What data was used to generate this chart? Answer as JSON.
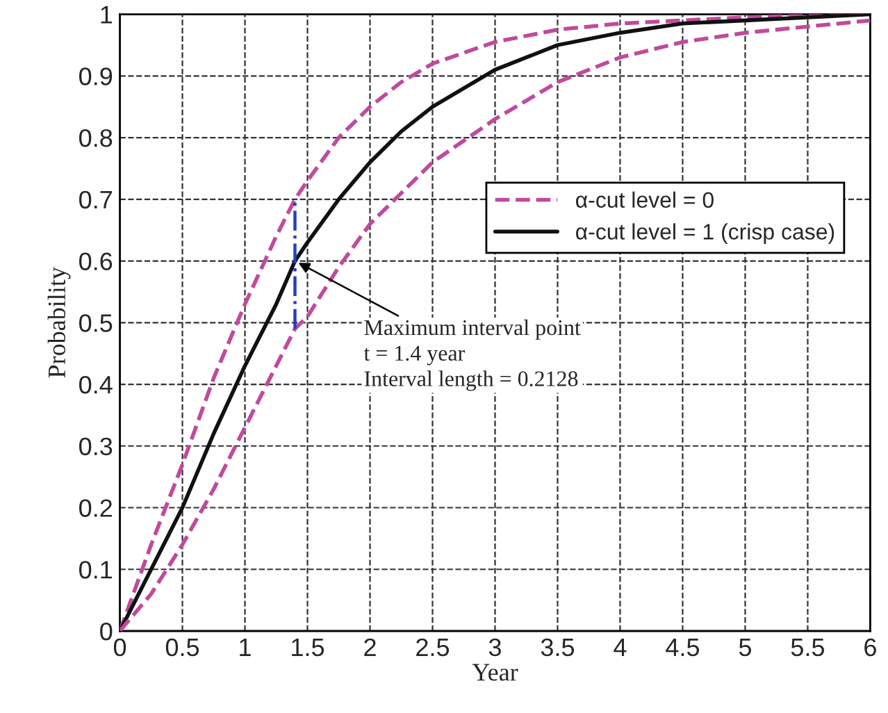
{
  "chart_data": {
    "type": "line",
    "xlabel": "Year",
    "ylabel": "Probability",
    "xlim": [
      0,
      6
    ],
    "xticks": [
      0,
      0.5,
      1,
      1.5,
      2,
      2.5,
      3,
      3.5,
      4,
      4.5,
      5,
      5.5,
      6
    ],
    "ylim": [
      0,
      1
    ],
    "yticks": [
      0,
      0.1,
      0.2,
      0.3,
      0.4,
      0.5,
      0.6,
      0.7,
      0.8,
      0.9,
      1
    ],
    "grid": true,
    "legend": "right",
    "marker": "none",
    "series": [
      {
        "name": "α-cut level = 0",
        "color": "#c04a9c",
        "line_style": "dashed",
        "x": [
          0,
          0.25,
          0.5,
          0.75,
          1,
          1.25,
          1.4,
          1.5,
          1.75,
          2,
          2.25,
          2.5,
          3,
          3.5,
          4,
          4.5,
          5,
          5.5,
          6
        ],
        "values": [
          0,
          0.14,
          0.27,
          0.41,
          0.53,
          0.64,
          0.7,
          0.73,
          0.8,
          0.85,
          0.89,
          0.92,
          0.955,
          0.975,
          0.985,
          0.99,
          0.995,
          0.998,
          1
        ]
      },
      {
        "name": "α-cut level = 1 (crisp case)",
        "color": "#111111",
        "line_style": "solid",
        "x": [
          0,
          0.25,
          0.5,
          0.75,
          1,
          1.25,
          1.4,
          1.5,
          1.75,
          2,
          2.25,
          2.5,
          3,
          3.5,
          4,
          4.5,
          5,
          5.5,
          6
        ],
        "values": [
          0,
          0.1,
          0.2,
          0.32,
          0.43,
          0.53,
          0.6,
          0.63,
          0.7,
          0.76,
          0.81,
          0.85,
          0.91,
          0.95,
          0.97,
          0.985,
          0.99,
          0.995,
          1
        ]
      },
      {
        "color": "#c04a9c",
        "line_style": "dashed",
        "x": [
          0,
          0.25,
          0.5,
          0.75,
          1,
          1.25,
          1.4,
          1.5,
          1.75,
          2,
          2.25,
          2.5,
          3,
          3.5,
          4,
          4.5,
          5,
          5.5,
          6
        ],
        "values": [
          0,
          0.06,
          0.14,
          0.23,
          0.33,
          0.43,
          0.49,
          0.51,
          0.59,
          0.66,
          0.71,
          0.76,
          0.83,
          0.89,
          0.93,
          0.955,
          0.97,
          0.98,
          0.99
        ]
      },
      {
        "color": "#2040c0",
        "line_style": "dotted",
        "x": [
          1.4,
          1.4
        ],
        "values": [
          0.49,
          0.7
        ]
      }
    ],
    "annotations": [
      {
        "text": "Maximum interval point\nt = 1.4 year\nInterval length = 0.2128",
        "x": 1.4,
        "y": 0.6
      }
    ]
  }
}
